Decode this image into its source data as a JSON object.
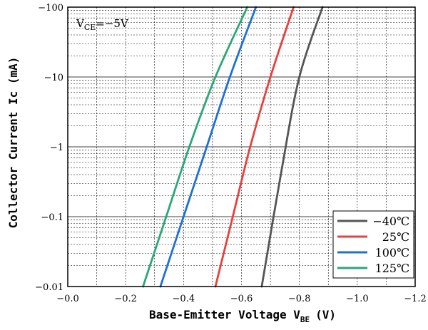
{
  "chart_data": {
    "type": "line",
    "title": "",
    "xlabel": "Base-Emitter Voltage V",
    "xlabel_sub": "BE",
    "xlabel_unit": "(V)",
    "ylabel": "Collector  Current Ic (mA)",
    "x_scale": "linear",
    "y_scale": "log",
    "xlim": [
      0,
      1.2
    ],
    "ylim": [
      0.01,
      100
    ],
    "x_ticks": [
      0,
      0.2,
      0.4,
      0.6,
      0.8,
      1.0,
      1.2
    ],
    "x_tick_labels": [
      "−0.0",
      "−0.2",
      "−0.4",
      "−0.6",
      "−0.8",
      "−1.0",
      "−1.2"
    ],
    "y_ticks": [
      0.01,
      0.1,
      1,
      10,
      100
    ],
    "y_tick_labels": [
      "−0.01",
      "−0.1",
      "−1",
      "−10",
      "−100"
    ],
    "grid": true,
    "legend_position": "bottom-right",
    "annotation": {
      "main": "V",
      "sub": "CE",
      "rest": "=−5V"
    },
    "series": [
      {
        "name": "−40℃",
        "color": "#555555",
        "x": [
          0.67,
          0.74,
          0.8,
          0.88
        ],
        "y": [
          0.01,
          0.5,
          10,
          100
        ]
      },
      {
        "name": "25℃",
        "color": "#e8413c",
        "x": [
          0.51,
          0.57,
          0.63,
          0.7,
          0.78
        ],
        "y": [
          0.01,
          0.1,
          1,
          10,
          100
        ]
      },
      {
        "name": "100℃",
        "color": "#1e6fd6",
        "x": [
          0.32,
          0.4,
          0.48,
          0.56,
          0.65
        ],
        "y": [
          0.01,
          0.1,
          1,
          10,
          100
        ]
      },
      {
        "name": "125℃",
        "color": "#2aa876",
        "x": [
          0.26,
          0.34,
          0.42,
          0.51,
          0.62
        ],
        "y": [
          0.01,
          0.1,
          1,
          10,
          100
        ]
      }
    ]
  }
}
